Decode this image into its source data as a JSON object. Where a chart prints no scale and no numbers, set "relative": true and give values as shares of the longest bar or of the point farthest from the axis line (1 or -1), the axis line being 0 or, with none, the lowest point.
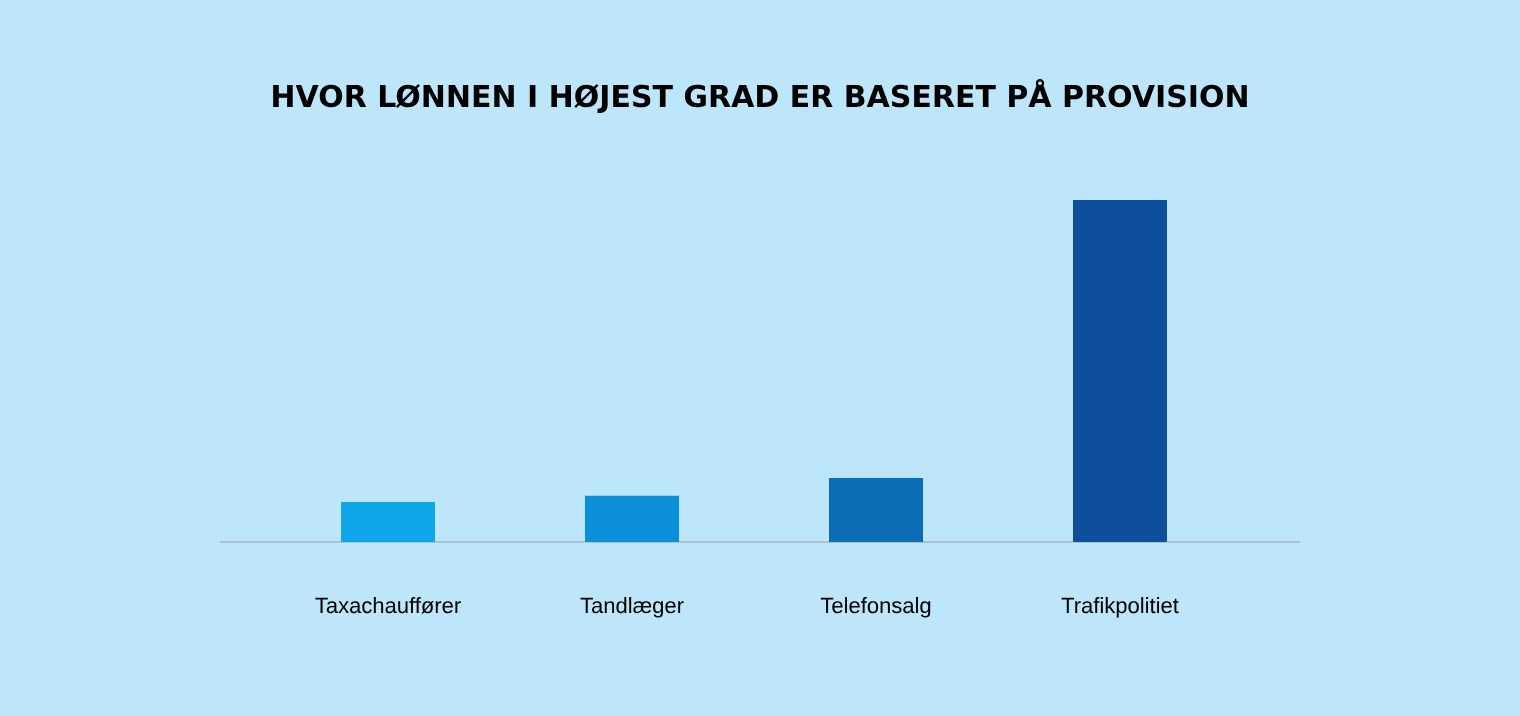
{
  "chart_data": {
    "type": "bar",
    "title": "HVOR LØNNEN I HØJEST GRAD ER BASERET PÅ PROVISION",
    "relative": true,
    "categories": [
      "Taxachauffører",
      "Tandlæger",
      "Telefonsalg",
      "Trafikpolitiet"
    ],
    "values": [
      0.117,
      0.135,
      0.187,
      1
    ],
    "colors": [
      "#0ea5e9",
      "#0a8fd8",
      "#0b6cb5",
      "#0d4f9a"
    ]
  }
}
